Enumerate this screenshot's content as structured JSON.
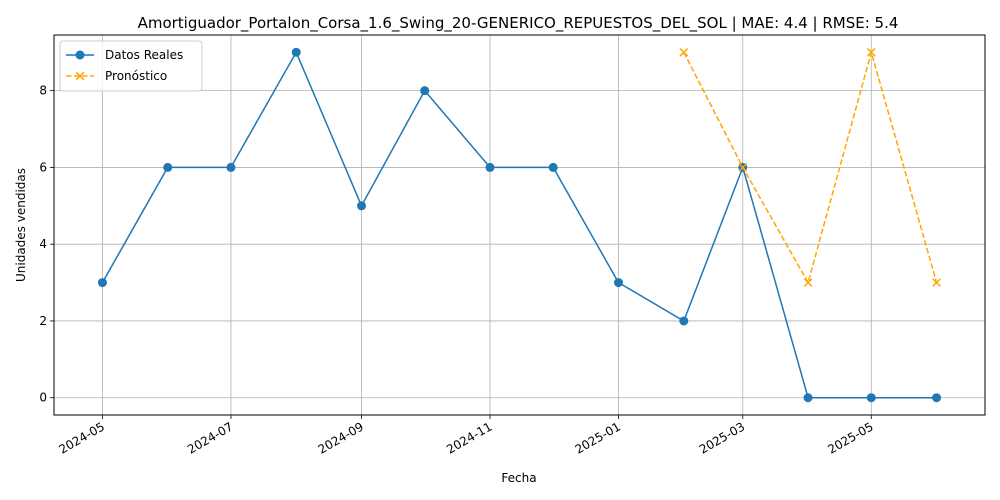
{
  "chart_data": {
    "type": "line",
    "title": "Amortiguador_Portalon_Corsa_1.6_Swing_20-GENERICO_REPUESTOS_DEL_SOL | MAE: 4.4 | RMSE: 5.4",
    "xlabel": "Fecha",
    "ylabel": "Unidades vendidas",
    "ylim": [
      -0.45,
      9.45
    ],
    "xlim": [
      "2024-04-08",
      "2025-06-24"
    ],
    "grid": true,
    "legend_position": "top-left",
    "x_ticks": [
      "2024-05",
      "2024-07",
      "2024-09",
      "2024-11",
      "2025-01",
      "2025-03",
      "2025-05"
    ],
    "y_ticks": [
      0,
      2,
      4,
      6,
      8
    ],
    "series": [
      {
        "name": "Datos Reales",
        "color": "#1f77b4",
        "style": "solid",
        "marker": "circle",
        "x": [
          "2024-05-01",
          "2024-06-01",
          "2024-07-01",
          "2024-08-01",
          "2024-09-01",
          "2024-10-01",
          "2024-11-01",
          "2024-12-01",
          "2025-01-01",
          "2025-02-01",
          "2025-03-01",
          "2025-04-01",
          "2025-05-01",
          "2025-06-01"
        ],
        "values": [
          3,
          6,
          6,
          9,
          5,
          8,
          6,
          6,
          3,
          2,
          6,
          0,
          0,
          0
        ]
      },
      {
        "name": "Pronóstico",
        "color": "#ffa500",
        "style": "dashed",
        "marker": "x",
        "x": [
          "2025-02-01",
          "2025-03-01",
          "2025-04-01",
          "2025-05-01",
          "2025-06-01"
        ],
        "values": [
          9,
          6,
          3,
          9,
          3
        ]
      }
    ]
  }
}
